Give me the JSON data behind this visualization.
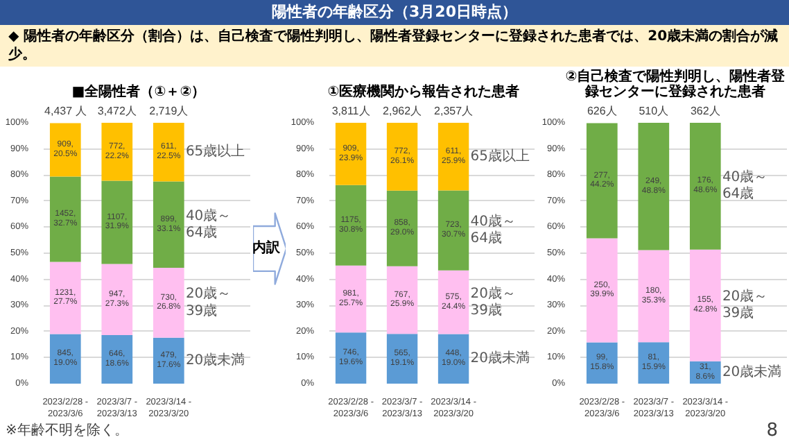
{
  "chart_data": [
    {
      "type": "bar",
      "stacked": true,
      "title": "■全陽性者（①＋②）",
      "categories": [
        "2023/2/28 - 2023/3/6",
        "2023/3/7 - 2023/3/13",
        "2023/3/14 - 2023/3/20"
      ],
      "ylim": [
        0,
        100
      ],
      "yticks": [
        {
          "value": 0,
          "label": "0%"
        },
        {
          "value": 10,
          "label": "10%"
        },
        {
          "value": 20,
          "label": "20%"
        },
        {
          "value": 30,
          "label": "30%"
        },
        {
          "value": 40,
          "label": "40%"
        },
        {
          "value": 50,
          "label": "50%"
        },
        {
          "value": 60,
          "label": "60%"
        },
        {
          "value": 70,
          "label": "70%"
        },
        {
          "value": 80,
          "label": "80%"
        },
        {
          "value": 90,
          "label": "90%"
        },
        {
          "value": 100,
          "label": "100%"
        }
      ],
      "grid": "y",
      "series": [
        {
          "name": "20歳未満",
          "color": "#5b9bd5",
          "values": [
            19.0,
            18.6,
            17.6
          ],
          "value_labels": [
            "845,\n19.0%",
            "646,\n18.6%",
            "479,\n17.6%"
          ]
        },
        {
          "name": "20歳～39歳",
          "color": "#ffbff0",
          "values": [
            27.7,
            27.3,
            26.8
          ],
          "value_labels": [
            "1231,\n27.7%",
            "947,\n27.3%",
            "730,\n26.8%"
          ]
        },
        {
          "name": "40歳～64歳",
          "color": "#70ad47",
          "values": [
            32.7,
            31.9,
            33.1
          ],
          "value_labels": [
            "1452,\n32.7%",
            "1107,\n31.9%",
            "899,\n33.1%"
          ]
        },
        {
          "name": "65歳以上",
          "color": "#ffc000",
          "values": [
            20.5,
            22.2,
            22.5
          ],
          "value_labels": [
            "909,\n20.5%",
            "772,\n22.2%",
            "611,\n22.5%"
          ]
        }
      ],
      "annotations": [
        "陽性者の年齢区分（3月20日時点）",
        "◆ 陽性者の年齢区分（割合）は、自己検査で陽性判明し、陽性者登録センターに登録された患者では、20歳未満の割合が減少。",
        "※年齢不明を除く。",
        {
          "text": "4,437 人",
          "x": "2023/2/28 - 2023/3/6",
          "y": 100
        },
        {
          "text": "3,472人",
          "x": "2023/3/7 - 2023/3/13",
          "y": 100
        },
        {
          "text": "2,719人",
          "x": "2023/3/14 - 2023/3/20",
          "y": 100
        }
      ]
    },
    {
      "type": "bar",
      "stacked": true,
      "title": "①医療機関から報告された患者",
      "categories": [
        "2023/2/28 - 2023/3/6",
        "2023/3/7 - 2023/3/13",
        "2023/3/14 - 2023/3/20"
      ],
      "ylim": [
        0,
        100
      ],
      "yticks": [
        {
          "value": 0,
          "label": "0%"
        },
        {
          "value": 10,
          "label": "10%"
        },
        {
          "value": 20,
          "label": "20%"
        },
        {
          "value": 30,
          "label": "30%"
        },
        {
          "value": 40,
          "label": "40%"
        },
        {
          "value": 50,
          "label": "50%"
        },
        {
          "value": 60,
          "label": "60%"
        },
        {
          "value": 70,
          "label": "70%"
        },
        {
          "value": 80,
          "label": "80%"
        },
        {
          "value": 90,
          "label": "90%"
        },
        {
          "value": 100,
          "label": "100%"
        }
      ],
      "grid": "y",
      "series": [
        {
          "name": "20歳未満",
          "color": "#5b9bd5",
          "values": [
            19.6,
            19.1,
            19.0
          ],
          "value_labels": [
            "746,\n19.6%",
            "565,\n19.1%",
            "448,\n19.0%"
          ]
        },
        {
          "name": "20歳～39歳",
          "color": "#ffbff0",
          "values": [
            25.7,
            25.9,
            24.4
          ],
          "value_labels": [
            "981,\n25.7%",
            "767,\n25.9%",
            "575,\n24.4%"
          ]
        },
        {
          "name": "40歳～64歳",
          "color": "#70ad47",
          "values": [
            30.8,
            29.0,
            30.7
          ],
          "value_labels": [
            "1175,\n30.8%",
            "858,\n29.0%",
            "723,\n30.7%"
          ]
        },
        {
          "name": "65歳以上",
          "color": "#ffc000",
          "values": [
            23.9,
            26.1,
            25.9
          ],
          "value_labels": [
            "909,\n23.9%",
            "772,\n26.1%",
            "611,\n25.9%"
          ]
        }
      ],
      "annotations": [
        "内訳",
        {
          "text": "3,811人",
          "x": "2023/2/28 - 2023/3/6",
          "y": 100
        },
        {
          "text": "2,962人",
          "x": "2023/3/7 - 2023/3/13",
          "y": 100
        },
        {
          "text": "2,357人",
          "x": "2023/3/14 - 2023/3/20",
          "y": 100
        }
      ]
    },
    {
      "type": "bar",
      "stacked": true,
      "title": "②自己検査で陽性判明し、陽性者登録センターに登録された患者",
      "categories": [
        "2023/2/28 - 2023/3/6",
        "2023/3/7 - 2023/3/13",
        "2023/3/14 - 2023/3/20"
      ],
      "ylim": [
        0,
        100
      ],
      "yticks": [
        {
          "value": 0,
          "label": "0%"
        },
        {
          "value": 10,
          "label": "10%"
        },
        {
          "value": 20,
          "label": "20%"
        },
        {
          "value": 30,
          "label": "30%"
        },
        {
          "value": 40,
          "label": "40%"
        },
        {
          "value": 50,
          "label": "50%"
        },
        {
          "value": 60,
          "label": "60%"
        },
        {
          "value": 70,
          "label": "70%"
        },
        {
          "value": 80,
          "label": "80%"
        },
        {
          "value": 90,
          "label": "90%"
        },
        {
          "value": 100,
          "label": "100%"
        }
      ],
      "grid": "y",
      "series": [
        {
          "name": "20歳未満",
          "color": "#5b9bd5",
          "values": [
            15.8,
            15.9,
            8.6
          ],
          "value_labels": [
            "99,\n15.8%",
            "81,\n15.9%",
            "31,\n8.6%"
          ]
        },
        {
          "name": "20歳～39歳",
          "color": "#ffbff0",
          "values": [
            39.9,
            35.3,
            42.8
          ],
          "value_labels": [
            "250,\n39.9%",
            "180,\n35.3%",
            "155,\n42.8%"
          ]
        },
        {
          "name": "40歳～64歳",
          "color": "#70ad47",
          "values": [
            44.2,
            48.8,
            48.6
          ],
          "value_labels": [
            "277,\n44.2%",
            "249,\n48.8%",
            "176,\n48.6%"
          ]
        }
      ],
      "annotations": [
        "8",
        {
          "text": "626人",
          "x": "2023/2/28 - 2023/3/6",
          "y": 100
        },
        {
          "text": "510人",
          "x": "2023/3/7 - 2023/3/13",
          "y": 100
        },
        {
          "text": "362人",
          "x": "2023/3/14 - 2023/3/20",
          "y": 100
        }
      ]
    }
  ]
}
